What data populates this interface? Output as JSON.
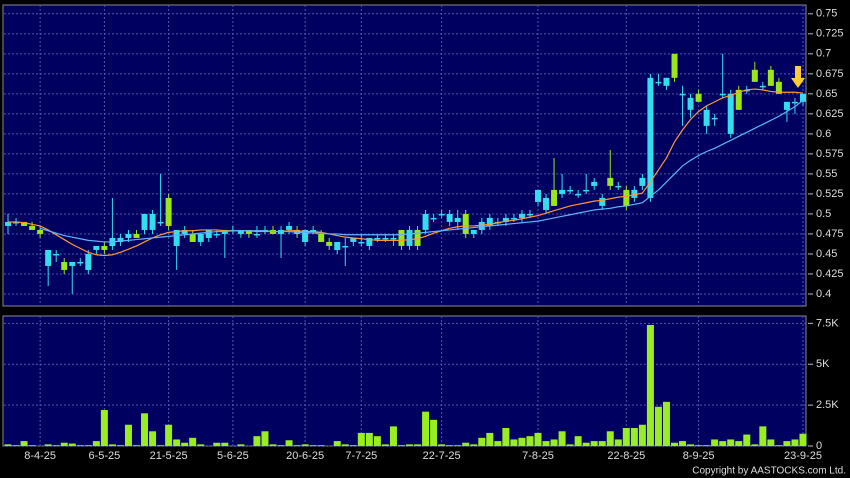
{
  "chart_data": [
    {
      "type": "candlestick",
      "up_color": "#33ddee",
      "down_color": "#99e619",
      "grid": true,
      "ylim": [
        0.385,
        0.761
      ],
      "yticks": [
        0.4,
        0.425,
        0.45,
        0.475,
        0.5,
        0.525,
        0.55,
        0.575,
        0.6,
        0.625,
        0.65,
        0.675,
        0.7,
        0.725,
        0.75
      ],
      "open": [
        0.485,
        0.49,
        0.49,
        0.485,
        0.48,
        0.435,
        0.45,
        0.44,
        0.435,
        0.44,
        0.43,
        0.455,
        0.46,
        0.46,
        0.465,
        0.47,
        0.475,
        0.48,
        0.48,
        0.49,
        0.52,
        0.46,
        0.475,
        0.475,
        0.465,
        0.47,
        0.475,
        0.475,
        0.48,
        0.475,
        0.48,
        0.475,
        0.48,
        0.48,
        0.475,
        0.48,
        0.48,
        0.465,
        0.48,
        0.475,
        0.465,
        0.455,
        0.46,
        0.465,
        0.465,
        0.46,
        0.47,
        0.47,
        0.47,
        0.48,
        0.46,
        0.48,
        0.48,
        0.495,
        0.5,
        0.49,
        0.49,
        0.5,
        0.475,
        0.48,
        0.485,
        0.49,
        0.49,
        0.495,
        0.495,
        0.5,
        0.515,
        0.505,
        0.53,
        0.525,
        0.53,
        0.525,
        0.53,
        0.535,
        0.51,
        0.545,
        0.535,
        0.53,
        0.52,
        0.535,
        0.52,
        0.665,
        0.66,
        0.7,
        0.65,
        0.63,
        0.65,
        0.61,
        0.62,
        0.65,
        0.6,
        0.655,
        0.655,
        0.68,
        0.66,
        0.68,
        0.665,
        0.63,
        0.64,
        0.64
      ],
      "high": [
        0.5,
        0.495,
        0.49,
        0.49,
        0.485,
        0.455,
        0.455,
        0.445,
        0.44,
        0.445,
        0.455,
        0.46,
        0.465,
        0.52,
        0.475,
        0.48,
        0.48,
        0.5,
        0.505,
        0.55,
        0.525,
        0.48,
        0.485,
        0.48,
        0.475,
        0.48,
        0.48,
        0.48,
        0.485,
        0.48,
        0.48,
        0.485,
        0.485,
        0.485,
        0.485,
        0.49,
        0.485,
        0.48,
        0.485,
        0.48,
        0.47,
        0.465,
        0.47,
        0.47,
        0.475,
        0.47,
        0.475,
        0.475,
        0.475,
        0.48,
        0.485,
        0.485,
        0.505,
        0.5,
        0.505,
        0.505,
        0.505,
        0.505,
        0.48,
        0.495,
        0.5,
        0.495,
        0.5,
        0.5,
        0.505,
        0.505,
        0.53,
        0.525,
        0.57,
        0.55,
        0.535,
        0.53,
        0.55,
        0.545,
        0.525,
        0.58,
        0.54,
        0.535,
        0.535,
        0.55,
        0.675,
        0.675,
        0.67,
        0.7,
        0.66,
        0.65,
        0.655,
        0.635,
        0.625,
        0.7,
        0.655,
        0.66,
        0.66,
        0.69,
        0.665,
        0.685,
        0.67,
        0.64,
        0.645,
        0.65
      ],
      "low": [
        0.475,
        0.485,
        0.485,
        0.48,
        0.47,
        0.41,
        0.44,
        0.425,
        0.4,
        0.435,
        0.425,
        0.45,
        0.45,
        0.455,
        0.46,
        0.465,
        0.47,
        0.475,
        0.475,
        0.485,
        0.48,
        0.43,
        0.47,
        0.465,
        0.46,
        0.465,
        0.47,
        0.445,
        0.475,
        0.47,
        0.47,
        0.47,
        0.475,
        0.475,
        0.445,
        0.475,
        0.47,
        0.46,
        0.475,
        0.465,
        0.455,
        0.45,
        0.435,
        0.46,
        0.46,
        0.455,
        0.465,
        0.465,
        0.46,
        0.455,
        0.455,
        0.455,
        0.475,
        0.49,
        0.495,
        0.485,
        0.48,
        0.47,
        0.47,
        0.475,
        0.48,
        0.485,
        0.485,
        0.49,
        0.49,
        0.495,
        0.51,
        0.5,
        0.51,
        0.52,
        0.525,
        0.52,
        0.525,
        0.53,
        0.505,
        0.53,
        0.53,
        0.505,
        0.515,
        0.53,
        0.515,
        0.66,
        0.655,
        0.665,
        0.61,
        0.62,
        0.64,
        0.6,
        0.61,
        0.645,
        0.595,
        0.63,
        0.65,
        0.665,
        0.655,
        0.66,
        0.65,
        0.615,
        0.625,
        0.635
      ],
      "close": [
        0.49,
        0.49,
        0.485,
        0.48,
        0.475,
        0.455,
        0.45,
        0.43,
        0.44,
        0.44,
        0.45,
        0.46,
        0.455,
        0.47,
        0.47,
        0.475,
        0.47,
        0.5,
        0.5,
        0.49,
        0.485,
        0.48,
        0.48,
        0.465,
        0.475,
        0.48,
        0.475,
        0.48,
        0.48,
        0.48,
        0.475,
        0.475,
        0.48,
        0.475,
        0.48,
        0.485,
        0.475,
        0.48,
        0.48,
        0.465,
        0.46,
        0.465,
        0.46,
        0.47,
        0.465,
        0.47,
        0.47,
        0.47,
        0.47,
        0.46,
        0.48,
        0.46,
        0.5,
        0.495,
        0.5,
        0.5,
        0.495,
        0.475,
        0.48,
        0.49,
        0.495,
        0.49,
        0.495,
        0.495,
        0.5,
        0.5,
        0.53,
        0.52,
        0.51,
        0.53,
        0.53,
        0.525,
        0.53,
        0.54,
        0.52,
        0.535,
        0.535,
        0.51,
        0.53,
        0.545,
        0.67,
        0.665,
        0.67,
        0.67,
        0.65,
        0.645,
        0.64,
        0.63,
        0.62,
        0.65,
        0.65,
        0.63,
        0.655,
        0.665,
        0.66,
        0.66,
        0.65,
        0.64,
        0.64,
        0.65
      ],
      "series": [
        {
          "color": "#ff9933",
          "values": [
            0.49,
            0.49,
            0.489,
            0.487,
            0.485,
            0.48,
            0.474,
            0.468,
            0.462,
            0.457,
            0.452,
            0.449,
            0.448,
            0.449,
            0.452,
            0.456,
            0.46,
            0.465,
            0.47,
            0.474,
            0.477,
            0.478,
            0.479,
            0.479,
            0.48,
            0.48,
            0.48,
            0.479,
            0.479,
            0.479,
            0.479,
            0.478,
            0.478,
            0.478,
            0.478,
            0.479,
            0.479,
            0.478,
            0.478,
            0.477,
            0.475,
            0.473,
            0.471,
            0.47,
            0.469,
            0.468,
            0.467,
            0.467,
            0.467,
            0.467,
            0.468,
            0.469,
            0.472,
            0.476,
            0.479,
            0.482,
            0.484,
            0.485,
            0.485,
            0.486,
            0.487,
            0.489,
            0.491,
            0.492,
            0.494,
            0.496,
            0.498,
            0.501,
            0.504,
            0.507,
            0.51,
            0.512,
            0.514,
            0.516,
            0.517,
            0.519,
            0.521,
            0.522,
            0.524,
            0.526,
            0.54,
            0.555,
            0.57,
            0.59,
            0.605,
            0.618,
            0.628,
            0.635,
            0.64,
            0.645,
            0.648,
            0.652,
            0.655,
            0.656,
            0.655,
            0.653,
            0.652,
            0.652,
            0.652,
            0.651
          ]
        },
        {
          "color": "#5fb4ff",
          "values": [
            null,
            null,
            null,
            null,
            0.482,
            0.479,
            0.476,
            0.473,
            0.471,
            0.469,
            0.467,
            0.466,
            0.465,
            0.465,
            0.466,
            0.467,
            0.468,
            0.469,
            0.47,
            0.471,
            0.472,
            0.473,
            0.474,
            0.475,
            0.476,
            0.477,
            0.478,
            0.478,
            0.479,
            0.479,
            0.479,
            0.479,
            0.479,
            0.478,
            0.478,
            0.478,
            0.477,
            0.477,
            0.476,
            0.476,
            0.475,
            0.475,
            0.474,
            0.474,
            0.474,
            0.474,
            0.474,
            0.474,
            0.474,
            0.474,
            0.475,
            0.476,
            0.477,
            0.478,
            0.479,
            0.48,
            0.481,
            0.482,
            0.483,
            0.484,
            0.485,
            0.486,
            0.487,
            0.488,
            0.489,
            0.49,
            0.491,
            0.493,
            0.495,
            0.497,
            0.499,
            0.501,
            0.503,
            0.505,
            0.506,
            0.507,
            0.509,
            0.51,
            0.512,
            0.514,
            0.522,
            0.53,
            0.54,
            0.55,
            0.56,
            0.567,
            0.573,
            0.578,
            0.582,
            0.587,
            0.592,
            0.597,
            0.602,
            0.607,
            0.612,
            0.617,
            0.622,
            0.628,
            0.634,
            0.642
          ]
        }
      ]
    },
    {
      "type": "bar",
      "color": "#99ee22",
      "grid": true,
      "ylim": [
        0,
        7950
      ],
      "yticks": [
        0,
        {
          "value": 2500,
          "label": "2.5K"
        },
        {
          "value": 5000,
          "label": "5K"
        },
        {
          "value": 7500,
          "label": "7.5K"
        }
      ],
      "categories": [
        null,
        null,
        null,
        null,
        "8-4-25",
        null,
        null,
        null,
        null,
        null,
        null,
        null,
        "6-5-25",
        null,
        null,
        null,
        null,
        null,
        null,
        null,
        "21-5-25",
        null,
        null,
        null,
        null,
        null,
        null,
        null,
        "5-6-25",
        null,
        null,
        null,
        null,
        null,
        null,
        null,
        null,
        "20-6-25",
        null,
        null,
        null,
        null,
        null,
        null,
        "7-7-25",
        null,
        null,
        null,
        null,
        null,
        null,
        null,
        null,
        null,
        "22-7-25",
        null,
        null,
        null,
        null,
        null,
        null,
        null,
        null,
        null,
        null,
        null,
        "7-8-25",
        null,
        null,
        null,
        null,
        null,
        null,
        null,
        null,
        null,
        null,
        "22-8-25",
        null,
        null,
        null,
        null,
        null,
        null,
        null,
        null,
        "8-9-25",
        null,
        null,
        null,
        null,
        null,
        null,
        null,
        null,
        null,
        null,
        null,
        null,
        "23-9-25"
      ],
      "values": [
        100,
        50,
        300,
        50,
        0,
        100,
        50,
        200,
        150,
        50,
        50,
        300,
        2200,
        100,
        50,
        1300,
        50,
        2000,
        900,
        50,
        1300,
        400,
        200,
        500,
        100,
        0,
        200,
        200,
        0,
        100,
        0,
        600,
        900,
        100,
        50,
        350,
        50,
        100,
        50,
        50,
        0,
        300,
        100,
        50,
        800,
        800,
        600,
        100,
        1200,
        50,
        100,
        100,
        2100,
        1600,
        100,
        50,
        50,
        200,
        100,
        500,
        800,
        300,
        1100,
        400,
        500,
        600,
        800,
        300,
        400,
        900,
        100,
        600,
        200,
        300,
        300,
        900,
        400,
        1100,
        1100,
        1300,
        7400,
        2400,
        2700,
        200,
        300,
        100,
        50,
        50,
        400,
        300,
        400,
        300,
        700,
        100,
        1200,
        400,
        50,
        300,
        400,
        750
      ],
      "footnote": "Copyright by AASTOCKS.com Ltd."
    }
  ]
}
